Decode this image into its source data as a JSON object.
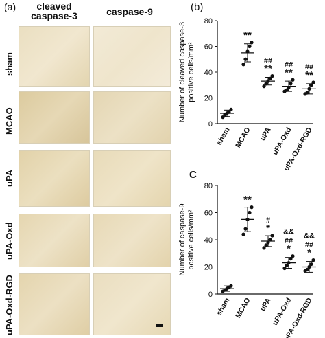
{
  "figure": {
    "panel_a_label": "(a)",
    "panel_b_label": "(b)",
    "panel_c_label": "C",
    "column_headers": [
      "cleaved\ncaspase-3",
      "caspase-9"
    ],
    "row_labels": [
      "sham",
      "MCAO",
      "uPA",
      "uPA-Oxd",
      "uPA-Oxd-RGD"
    ]
  },
  "chart_data": [
    {
      "type": "scatter",
      "panel": "b",
      "ylabel": "Number of cleaved caspase-3\npositive cells/mm²",
      "categories": [
        "sham",
        "MCAO",
        "uPA",
        "uPA-Oxd",
        "uPA-Oxd-RGD"
      ],
      "ylim": [
        0,
        80
      ],
      "yticks": [
        0,
        20,
        40,
        60,
        80
      ],
      "points": [
        [
          5,
          7,
          8,
          9,
          11
        ],
        [
          46,
          50,
          56,
          60,
          63
        ],
        [
          29,
          31,
          33,
          35,
          37
        ],
        [
          25,
          26,
          28,
          31,
          34
        ],
        [
          23,
          24,
          27,
          30,
          32
        ]
      ],
      "means": [
        8,
        55,
        33,
        29,
        27
      ],
      "sd": [
        2.5,
        7,
        3,
        4,
        4
      ],
      "annotations": [
        [],
        [
          "**"
        ],
        [
          "##",
          "**"
        ],
        [
          "##",
          "**"
        ],
        [
          "##",
          "**"
        ]
      ]
    },
    {
      "type": "scatter",
      "panel": "c",
      "ylabel": "Number of caspase-9\npositive cells/mm²",
      "categories": [
        "sham",
        "MCAO",
        "uPA",
        "uPA-Oxd",
        "uPA-Oxd-RGD"
      ],
      "ylim": [
        0,
        80
      ],
      "yticks": [
        0,
        20,
        40,
        60,
        80
      ],
      "points": [
        [
          2,
          3,
          4,
          5,
          6
        ],
        [
          44,
          48,
          55,
          60,
          64
        ],
        [
          34,
          36,
          38,
          40,
          43
        ],
        [
          19,
          21,
          23,
          26,
          28
        ],
        [
          17,
          18,
          20,
          22,
          25
        ]
      ],
      "means": [
        4,
        55,
        39,
        23,
        20
      ],
      "sd": [
        2,
        9,
        4,
        4,
        4
      ],
      "annotations": [
        [],
        [
          "**"
        ],
        [
          "#",
          "*"
        ],
        [
          "&&",
          "##",
          "*"
        ],
        [
          "&&",
          "##",
          "*"
        ]
      ]
    }
  ],
  "colors": {
    "tile_light": "#efe6cf",
    "tile_mid": "#e6d8b6",
    "tile_dark": "#d9c79e"
  }
}
